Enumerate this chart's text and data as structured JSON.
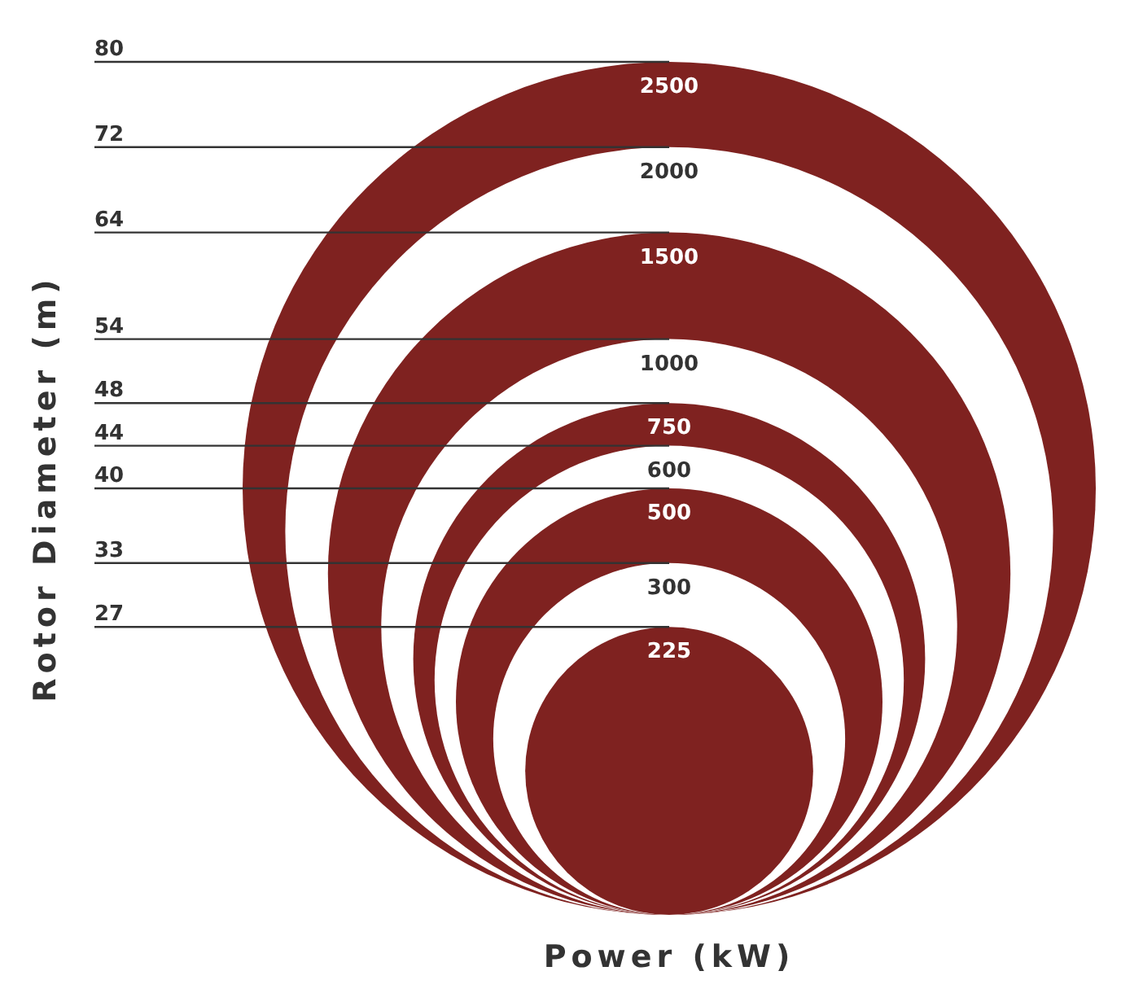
{
  "chart_data": {
    "type": "other",
    "xlabel": "Power (kW)",
    "ylabel": "Rotor Diameter (m)",
    "categories": [
      "2500",
      "2000",
      "1500",
      "1000",
      "750",
      "600",
      "500",
      "300",
      "225"
    ],
    "values": [
      80,
      72,
      64,
      54,
      48,
      44,
      40,
      33,
      27
    ],
    "colors": [
      "#7f2220",
      "#ffffff",
      "#7f2220",
      "#ffffff",
      "#7f2220",
      "#ffffff",
      "#7f2220",
      "#ffffff",
      "#7f2220"
    ],
    "data_labels": true
  }
}
